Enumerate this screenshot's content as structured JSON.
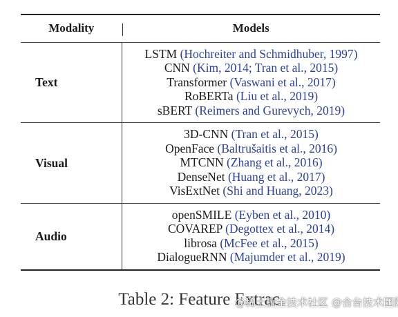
{
  "table": {
    "headers": {
      "modality": "Modality",
      "models": "Models"
    },
    "groups": [
      {
        "modality": "Text",
        "models": [
          {
            "name": "LSTM ",
            "citation": "(Hochreiter and Schmidhuber, 1997)"
          },
          {
            "name": "CNN ",
            "citation": "(Kim, 2014; Tran et al., 2015)"
          },
          {
            "name": "Transformer ",
            "citation": "(Vaswani et al., 2017)"
          },
          {
            "name": "RoBERTa ",
            "citation": "(Liu et al., 2019)"
          },
          {
            "name": "sBERT ",
            "citation": "(Reimers and Gurevych, 2019)"
          }
        ]
      },
      {
        "modality": "Visual",
        "models": [
          {
            "name": "3D-CNN ",
            "citation": "(Tran et al., 2015)"
          },
          {
            "name": "OpenFace ",
            "citation": "(Baltrušaitis et al., 2016)"
          },
          {
            "name": "MTCNN ",
            "citation": "(Zhang et al., 2016)"
          },
          {
            "name": "DenseNet ",
            "citation": "(Huang et al., 2017)"
          },
          {
            "name": "VisExtNet ",
            "citation": "(Shi and Huang, 2023)"
          }
        ]
      },
      {
        "modality": "Audio",
        "models": [
          {
            "name": "openSMILE ",
            "citation": "(Eyben et al., 2010)"
          },
          {
            "name": "COVAREP ",
            "citation": "(Degottex et al., 2014)"
          },
          {
            "name": "librosa ",
            "citation": "(McFee et al., 2015)"
          },
          {
            "name": "DialogueRNN ",
            "citation": "(Majumder et al., 2019)"
          }
        ]
      }
    ]
  },
  "caption": "Table 2: Feature Extrac",
  "watermark": "@稀土掘金技术社区 @合台技术团队",
  "colors": {
    "citation": "#2a3f9e",
    "text": "#1a1a1a"
  }
}
